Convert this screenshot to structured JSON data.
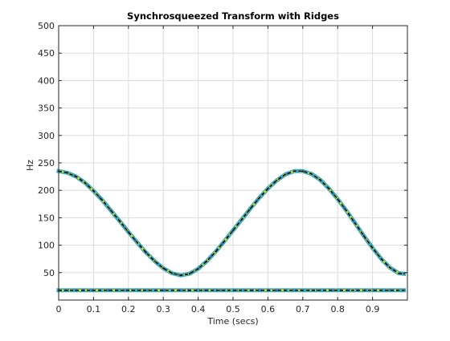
{
  "chart_data": {
    "type": "line",
    "title": "Synchrosqueezed Transform with Ridges",
    "xlabel": "Time (secs)",
    "ylabel": "Hz",
    "xlim": [
      0,
      1
    ],
    "ylim": [
      0,
      500
    ],
    "x_ticks": [
      "0",
      "0.1",
      "0.2",
      "0.3",
      "0.4",
      "0.5",
      "0.6",
      "0.7",
      "0.8",
      "0.9"
    ],
    "y_ticks": [
      "50",
      "100",
      "150",
      "200",
      "250",
      "300",
      "350",
      "400",
      "450",
      "500"
    ],
    "x_tick_values": [
      0,
      0.1,
      0.2,
      0.3,
      0.4,
      0.5,
      0.6,
      0.7,
      0.8,
      0.9
    ],
    "y_tick_values": [
      50,
      100,
      150,
      200,
      250,
      300,
      350,
      400,
      450,
      500
    ],
    "grid": true,
    "series": [
      {
        "label_shown": false,
        "x": [
          0,
          0.025,
          0.05,
          0.075,
          0.1,
          0.125,
          0.15,
          0.175,
          0.2,
          0.225,
          0.25,
          0.275,
          0.3,
          0.325,
          0.35,
          0.375,
          0.4,
          0.425,
          0.45,
          0.475,
          0.5,
          0.525,
          0.55,
          0.575,
          0.6,
          0.625,
          0.65,
          0.675,
          0.7,
          0.725,
          0.75,
          0.775,
          0.8,
          0.825,
          0.85,
          0.875,
          0.9,
          0.925,
          0.95,
          0.975,
          0.99
        ],
        "values": [
          235,
          232,
          225,
          214,
          199,
          182,
          163,
          144,
          124,
          105,
          87,
          71,
          58,
          49,
          45,
          48,
          57,
          71,
          88,
          107,
          127,
          147,
          167,
          186,
          203,
          218,
          229,
          235,
          235,
          230,
          219,
          203,
          184,
          163,
          140,
          117,
          95,
          75,
          59,
          49,
          48
        ]
      },
      {
        "label_shown": false,
        "x": [
          0,
          0.99
        ],
        "values": [
          18,
          18
        ]
      }
    ],
    "colors": {
      "ridge": "#000000",
      "spectrum_core": "#3b4cc0",
      "spectrum_mid": "#21a3b8",
      "spectrum_peak": "#d8e219",
      "grid": "#dcdcdc",
      "axes": "#262626"
    }
  }
}
